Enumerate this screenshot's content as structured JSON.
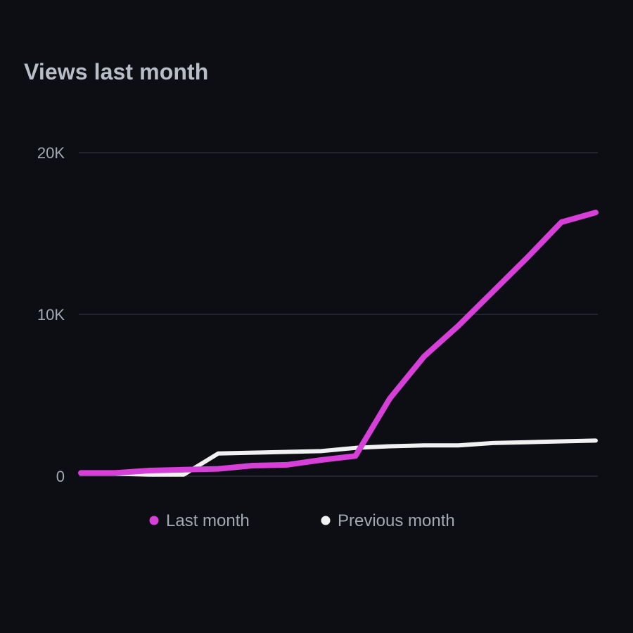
{
  "colors": {
    "background": "#0c0e13",
    "grid": "#2a2d34",
    "axis_text": "#a3a8b2",
    "title": "#b9bdc7"
  },
  "chart_data": {
    "type": "line",
    "title": "Views last month",
    "xlabel": "",
    "ylabel": "",
    "ylim": [
      0,
      20000
    ],
    "yticks": [
      {
        "value": 0,
        "label": "0"
      },
      {
        "value": 10000,
        "label": "10K"
      },
      {
        "value": 20000,
        "label": "20K"
      }
    ],
    "x": [
      1,
      2,
      3,
      4,
      5,
      6,
      7,
      8,
      9,
      10,
      11,
      12,
      13,
      14,
      15,
      16
    ],
    "grid": true,
    "legend_position": "bottom",
    "series": [
      {
        "name": "Last month",
        "color": "#d63fd8",
        "values": [
          200,
          200,
          350,
          400,
          450,
          650,
          700,
          1000,
          1250,
          4800,
          7400,
          9300,
          11400,
          13500,
          15700,
          16300
        ]
      },
      {
        "name": "Previous month",
        "color": "#f1f1f1",
        "values": [
          150,
          150,
          100,
          100,
          1400,
          1450,
          1500,
          1550,
          1750,
          1850,
          1900,
          1900,
          2050,
          2100,
          2150,
          2200
        ]
      }
    ]
  }
}
